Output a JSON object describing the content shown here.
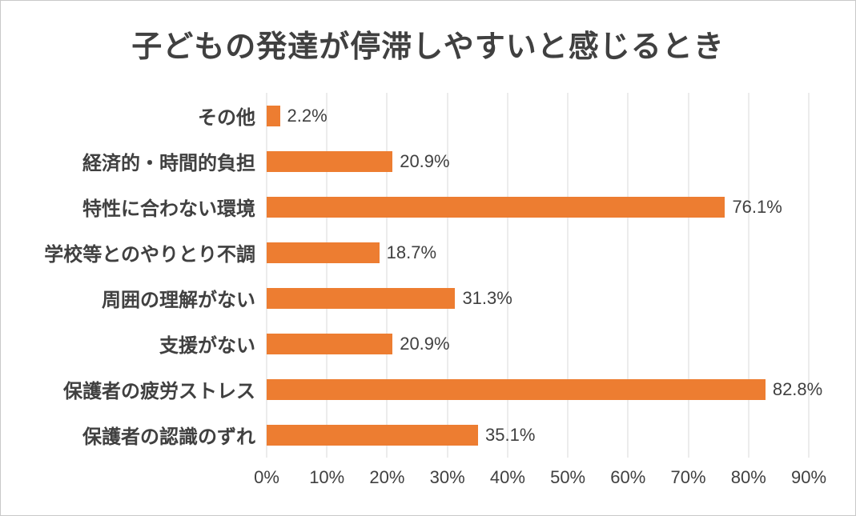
{
  "chart_data": {
    "type": "bar",
    "orientation": "horizontal",
    "title": "子どもの発達が停滞しやすいと感じるとき",
    "categories": [
      "その他",
      "経済的・時間的負担",
      "特性に合わない環境",
      "学校等とのやりとり不調",
      "周囲の理解がない",
      "支援がない",
      "保護者の疲労ストレス",
      "保護者の認識のずれ"
    ],
    "values": [
      2.2,
      20.9,
      76.1,
      18.7,
      31.3,
      20.9,
      82.8,
      35.1
    ],
    "value_labels": [
      "2.2%",
      "20.9%",
      "76.1%",
      "18.7%",
      "31.3%",
      "20.9%",
      "82.8%",
      "35.1%"
    ],
    "xlabel": "",
    "ylabel": "",
    "xlim": [
      0,
      90
    ],
    "x_ticks": [
      0,
      10,
      20,
      30,
      40,
      50,
      60,
      70,
      80,
      90
    ],
    "x_tick_labels": [
      "0%",
      "10%",
      "20%",
      "30%",
      "40%",
      "50%",
      "60%",
      "70%",
      "80%",
      "90%"
    ],
    "grid": true,
    "legend": "none",
    "bar_color": "#ED7D31",
    "grid_color": "#D9D9D9",
    "text_color": "#404040",
    "background_color": "#FFFFFF"
  }
}
